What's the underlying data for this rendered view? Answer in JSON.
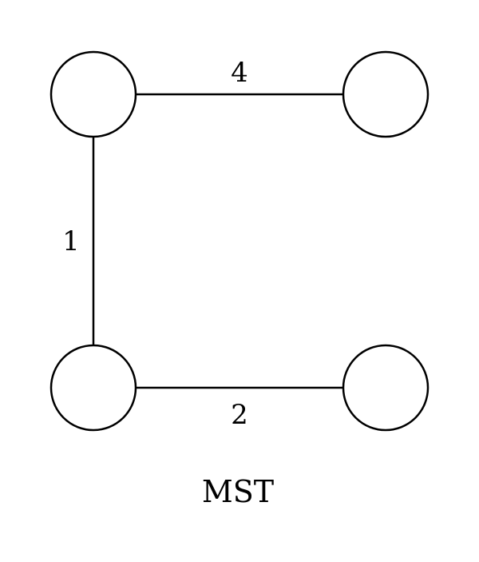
{
  "diagram": {
    "caption": "MST",
    "edges": {
      "top": {
        "weight": "4"
      },
      "left": {
        "weight": "1"
      },
      "bottom": {
        "weight": "2"
      }
    },
    "colors": {
      "stroke": "#000000",
      "background": "#ffffff"
    }
  }
}
